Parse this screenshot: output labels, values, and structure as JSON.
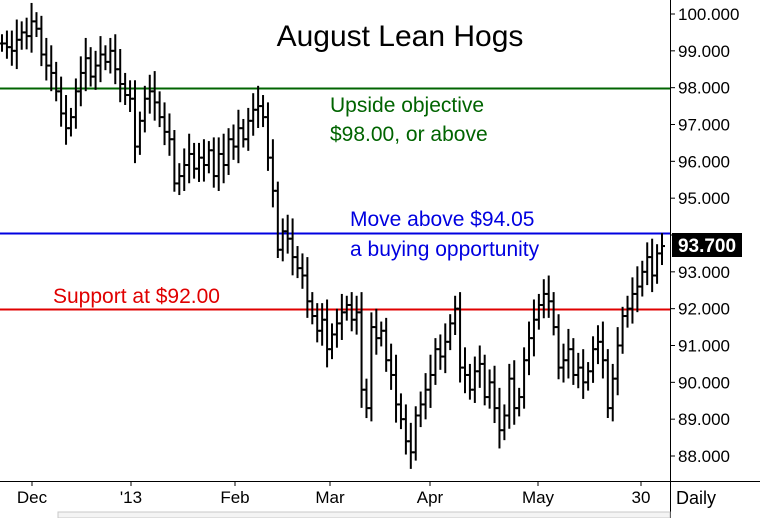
{
  "chart_data": {
    "type": "ohlc-bar",
    "title": "August Lean Hogs",
    "interval_label": "Daily",
    "last_price_label": "93.700",
    "ylim": [
      87.6,
      100.4
    ],
    "y_ticks": [
      "88.000",
      "89.000",
      "90.000",
      "91.000",
      "92.000",
      "93.000",
      "94.000",
      "95.000",
      "96.000",
      "97.000",
      "98.000",
      "99.000",
      "100.000"
    ],
    "x_tick_labels": [
      "Dec",
      "'13",
      "Feb",
      "Mar",
      "Apr",
      "May",
      "30"
    ],
    "reference_lines": [
      {
        "name": "objective",
        "value": 98.0,
        "color": "#006400"
      },
      {
        "name": "breakout",
        "value": 94.05,
        "color": "#0000e0"
      },
      {
        "name": "support",
        "value": 92.0,
        "color": "#e00000"
      }
    ],
    "annotations": {
      "objective_line1": "Upside objective",
      "objective_line2": "$98.00, or above",
      "breakout_line1": "Move above $94.05",
      "breakout_line2": "a buying opportunity",
      "support": "Support at $92.00"
    },
    "colors": {
      "objective": "#006400",
      "breakout": "#0000e0",
      "support": "#e00000",
      "bars": "#000000"
    },
    "close_series": [
      99.2,
      99.1,
      99.0,
      99.3,
      99.5,
      99.4,
      99.8,
      99.6,
      98.9,
      98.6,
      98.4,
      97.9,
      97.3,
      96.9,
      97.2,
      97.9,
      98.4,
      98.8,
      98.3,
      98.6,
      98.9,
      98.7,
      99.0,
      98.5,
      98.1,
      97.8,
      97.7,
      96.4,
      97.1,
      97.7,
      97.9,
      97.6,
      97.2,
      96.8,
      96.6,
      95.4,
      95.6,
      95.9,
      96.2,
      95.8,
      96.1,
      95.9,
      96.3,
      95.6,
      96.2,
      95.9,
      96.6,
      96.4,
      96.9,
      96.6,
      97.1,
      97.4,
      97.5,
      97.2,
      96.1,
      95.2,
      93.6,
      94.1,
      93.9,
      93.4,
      93.1,
      92.9,
      92.2,
      91.8,
      91.4,
      91.7,
      90.9,
      91.3,
      91.6,
      91.9,
      92.1,
      91.7,
      91.9,
      89.8,
      89.3,
      91.5,
      91.2,
      91.4,
      90.6,
      90.2,
      89.4,
      89.0,
      88.4,
      88.1,
      89.1,
      89.4,
      89.8,
      90.2,
      90.9,
      90.7,
      91.1,
      91.6,
      92.0,
      90.4,
      90.2,
      89.8,
      90.3,
      90.5,
      89.6,
      90.0,
      89.3,
      88.7,
      89.1,
      90.1,
      89.3,
      89.6,
      90.6,
      91.2,
      91.7,
      92.1,
      92.4,
      92.2,
      91.5,
      90.4,
      90.6,
      90.9,
      90.2,
      90.4,
      90.0,
      90.3,
      90.9,
      91.1,
      90.6,
      89.3,
      90.1,
      91.0,
      91.8,
      92.0,
      92.4,
      92.6,
      93.0,
      93.4,
      92.9,
      93.5,
      93.7
    ]
  }
}
